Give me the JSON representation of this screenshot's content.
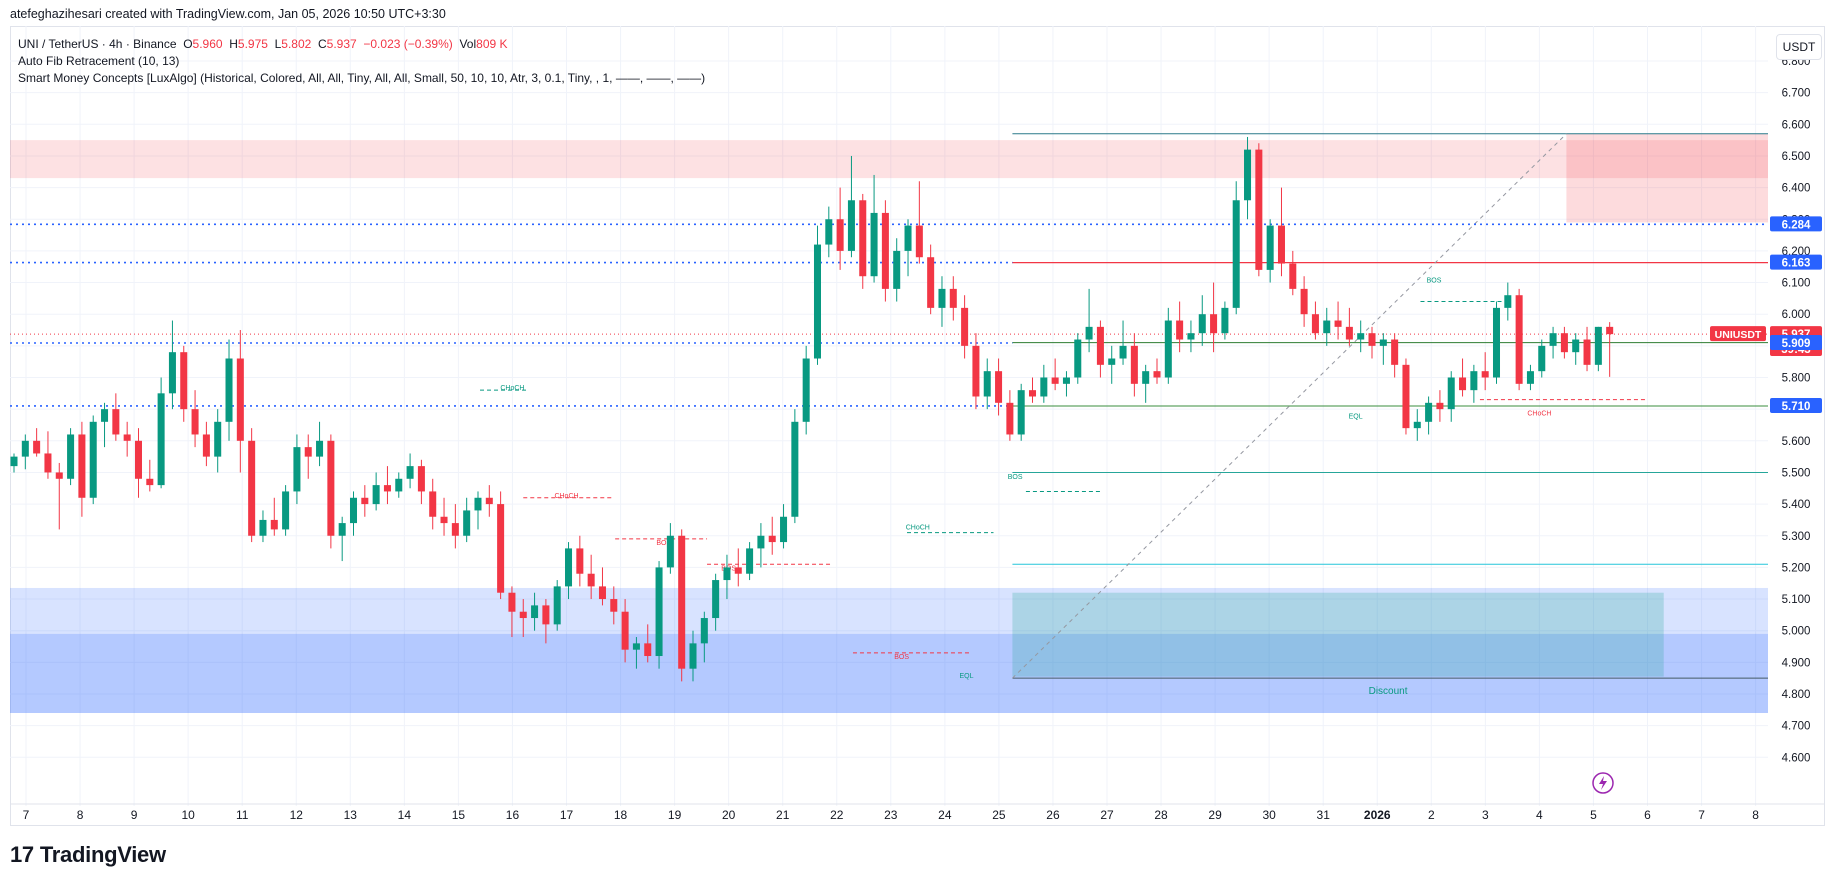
{
  "header": {
    "author_line": "atefeghazihesari created with TradingView.com, Jan 05, 2026 10:50 UTC+3:30"
  },
  "legend": {
    "symbol": "UNI / TetherUS · 4h · Binance",
    "open_label": "O",
    "open": "5.960",
    "high_label": "H",
    "high": "5.975",
    "low_label": "L",
    "low": "5.802",
    "close_label": "C",
    "close": "5.937",
    "change": "−0.023 (−0.39%)",
    "vol_label": "Vol",
    "vol": "809 K",
    "indicator1": "Auto Fib Retracement (10, 13)",
    "indicator2": "Smart Money Concepts [LuxAlgo] (Historical, Colored, All, All, Tiny, All, All, Small, 50, 10, 10, Atr, 3, 0.1, Tiny, , 1, ——, ——, ——)"
  },
  "currency_button": "USDT",
  "brand": {
    "name": "TradingView",
    "logo": "17"
  },
  "chart_data": {
    "type": "candlestick",
    "y_ticks": [
      "6.800",
      "6.700",
      "6.600",
      "6.500",
      "6.400",
      "6.300",
      "6.200",
      "6.100",
      "6.000",
      "5.900",
      "5.800",
      "5.700",
      "5.600",
      "5.500",
      "5.400",
      "5.300",
      "5.200",
      "5.100",
      "5.000",
      "4.900",
      "4.800",
      "4.700",
      "4.600"
    ],
    "ylim": [
      4.55,
      6.82
    ],
    "x_ticks": [
      "7",
      "8",
      "9",
      "10",
      "11",
      "12",
      "13",
      "14",
      "15",
      "16",
      "17",
      "18",
      "19",
      "20",
      "21",
      "22",
      "23",
      "24",
      "25",
      "26",
      "27",
      "28",
      "29",
      "30",
      "31",
      "2026",
      "2",
      "3",
      "4",
      "5",
      "6",
      "7",
      "8"
    ],
    "price_badges": [
      {
        "label": "6.284",
        "value": 6.284,
        "color": "#2962ff"
      },
      {
        "label": "6.163",
        "value": 6.163,
        "color": "#2962ff"
      },
      {
        "label": "5.937",
        "value": 5.937,
        "color": "#f23645"
      },
      {
        "label": "39:43",
        "value": 5.89,
        "color": "#f23645"
      },
      {
        "label": "5.909",
        "value": 5.909,
        "color": "#2962ff"
      },
      {
        "label": "5.710",
        "value": 5.71,
        "color": "#2962ff"
      }
    ],
    "symbol_badge": "UNIUSDT",
    "smc_labels": [
      {
        "text": "CHoCH",
        "color": "#089981",
        "x": 9.0,
        "y": 5.76
      },
      {
        "text": "CHoCH",
        "color": "#f23645",
        "x": 10.0,
        "y": 5.42
      },
      {
        "text": "BOS",
        "color": "#f23645",
        "x": 11.8,
        "y": 5.27
      },
      {
        "text": "BOS",
        "color": "#f23645",
        "x": 13.0,
        "y": 5.19
      },
      {
        "text": "CHoCH",
        "color": "#089981",
        "x": 16.5,
        "y": 5.32
      },
      {
        "text": "BOS",
        "color": "#f23645",
        "x": 16.2,
        "y": 4.91
      },
      {
        "text": "BOS",
        "color": "#089981",
        "x": 18.3,
        "y": 5.48
      },
      {
        "text": "EQL",
        "color": "#089981",
        "x": 17.4,
        "y": 4.85
      },
      {
        "text": "EQL",
        "color": "#089981",
        "x": 24.6,
        "y": 5.67
      },
      {
        "text": "BOS",
        "color": "#089981",
        "x": 26.05,
        "y": 6.1
      },
      {
        "text": "CHoCH",
        "color": "#f23645",
        "x": 28.0,
        "y": 5.68
      }
    ],
    "zone_label": "Discount",
    "candles": [
      [
        5.52,
        5.56,
        5.5,
        5.55
      ],
      [
        5.55,
        5.62,
        5.51,
        5.6
      ],
      [
        5.6,
        5.64,
        5.55,
        5.56
      ],
      [
        5.56,
        5.63,
        5.48,
        5.5
      ],
      [
        5.5,
        5.53,
        5.32,
        5.48
      ],
      [
        5.48,
        5.64,
        5.46,
        5.62
      ],
      [
        5.62,
        5.66,
        5.36,
        5.42
      ],
      [
        5.42,
        5.68,
        5.4,
        5.66
      ],
      [
        5.66,
        5.72,
        5.58,
        5.7
      ],
      [
        5.7,
        5.75,
        5.6,
        5.62
      ],
      [
        5.62,
        5.66,
        5.55,
        5.6
      ],
      [
        5.6,
        5.64,
        5.42,
        5.48
      ],
      [
        5.48,
        5.54,
        5.44,
        5.46
      ],
      [
        5.46,
        5.8,
        5.45,
        5.75
      ],
      [
        5.75,
        5.98,
        5.7,
        5.88
      ],
      [
        5.88,
        5.9,
        5.66,
        5.7
      ],
      [
        5.7,
        5.76,
        5.58,
        5.62
      ],
      [
        5.62,
        5.66,
        5.52,
        5.55
      ],
      [
        5.55,
        5.7,
        5.5,
        5.66
      ],
      [
        5.66,
        5.92,
        5.6,
        5.86
      ],
      [
        5.86,
        5.95,
        5.5,
        5.6
      ],
      [
        5.6,
        5.64,
        5.28,
        5.3
      ],
      [
        5.3,
        5.38,
        5.28,
        5.35
      ],
      [
        5.35,
        5.42,
        5.3,
        5.32
      ],
      [
        5.32,
        5.46,
        5.3,
        5.44
      ],
      [
        5.44,
        5.62,
        5.4,
        5.58
      ],
      [
        5.58,
        5.62,
        5.48,
        5.55
      ],
      [
        5.55,
        5.66,
        5.52,
        5.6
      ],
      [
        5.6,
        5.62,
        5.26,
        5.3
      ],
      [
        5.3,
        5.36,
        5.22,
        5.34
      ],
      [
        5.34,
        5.44,
        5.3,
        5.42
      ],
      [
        5.42,
        5.46,
        5.36,
        5.4
      ],
      [
        5.4,
        5.5,
        5.38,
        5.46
      ],
      [
        5.46,
        5.52,
        5.4,
        5.44
      ],
      [
        5.44,
        5.5,
        5.42,
        5.48
      ],
      [
        5.48,
        5.56,
        5.45,
        5.52
      ],
      [
        5.52,
        5.54,
        5.4,
        5.44
      ],
      [
        5.44,
        5.48,
        5.32,
        5.36
      ],
      [
        5.36,
        5.42,
        5.3,
        5.34
      ],
      [
        5.34,
        5.4,
        5.26,
        5.3
      ],
      [
        5.3,
        5.42,
        5.28,
        5.38
      ],
      [
        5.38,
        5.44,
        5.32,
        5.42
      ],
      [
        5.42,
        5.46,
        5.36,
        5.4
      ],
      [
        5.4,
        5.44,
        5.1,
        5.12
      ],
      [
        5.12,
        5.14,
        4.98,
        5.06
      ],
      [
        5.06,
        5.1,
        4.98,
        5.04
      ],
      [
        5.04,
        5.12,
        5.0,
        5.08
      ],
      [
        5.08,
        5.1,
        4.96,
        5.02
      ],
      [
        5.02,
        5.16,
        5.0,
        5.14
      ],
      [
        5.14,
        5.28,
        5.1,
        5.26
      ],
      [
        5.26,
        5.3,
        5.14,
        5.18
      ],
      [
        5.18,
        5.24,
        5.1,
        5.14
      ],
      [
        5.14,
        5.2,
        5.08,
        5.1
      ],
      [
        5.1,
        5.14,
        5.02,
        5.06
      ],
      [
        5.06,
        5.1,
        4.9,
        4.94
      ],
      [
        4.94,
        4.98,
        4.88,
        4.96
      ],
      [
        4.96,
        5.02,
        4.9,
        4.92
      ],
      [
        4.92,
        5.22,
        4.88,
        5.2
      ],
      [
        5.2,
        5.34,
        5.18,
        5.3
      ],
      [
        5.3,
        5.32,
        4.84,
        4.88
      ],
      [
        4.88,
        5.0,
        4.84,
        4.96
      ],
      [
        4.96,
        5.06,
        4.9,
        5.04
      ],
      [
        5.04,
        5.18,
        5.0,
        5.16
      ],
      [
        5.16,
        5.24,
        5.1,
        5.2
      ],
      [
        5.2,
        5.26,
        5.14,
        5.18
      ],
      [
        5.18,
        5.28,
        5.16,
        5.26
      ],
      [
        5.26,
        5.34,
        5.2,
        5.3
      ],
      [
        5.3,
        5.36,
        5.24,
        5.28
      ],
      [
        5.28,
        5.4,
        5.26,
        5.36
      ],
      [
        5.36,
        5.7,
        5.34,
        5.66
      ],
      [
        5.66,
        5.9,
        5.62,
        5.86
      ],
      [
        5.86,
        6.28,
        5.84,
        6.22
      ],
      [
        6.22,
        6.34,
        6.18,
        6.3
      ],
      [
        6.3,
        6.4,
        6.14,
        6.2
      ],
      [
        6.2,
        6.5,
        6.18,
        6.36
      ],
      [
        6.36,
        6.38,
        6.08,
        6.12
      ],
      [
        6.12,
        6.44,
        6.1,
        6.32
      ],
      [
        6.32,
        6.36,
        6.04,
        6.08
      ],
      [
        6.08,
        6.24,
        6.04,
        6.2
      ],
      [
        6.2,
        6.3,
        6.12,
        6.28
      ],
      [
        6.28,
        6.42,
        6.16,
        6.18
      ],
      [
        6.18,
        6.22,
        6.0,
        6.02
      ],
      [
        6.02,
        6.12,
        5.96,
        6.08
      ],
      [
        6.08,
        6.12,
        5.98,
        6.02
      ],
      [
        6.02,
        6.06,
        5.86,
        5.9
      ],
      [
        5.9,
        5.94,
        5.7,
        5.74
      ],
      [
        5.74,
        5.86,
        5.7,
        5.82
      ],
      [
        5.82,
        5.86,
        5.68,
        5.72
      ],
      [
        5.72,
        5.76,
        5.6,
        5.62
      ],
      [
        5.62,
        5.78,
        5.6,
        5.76
      ],
      [
        5.76,
        5.8,
        5.72,
        5.74
      ],
      [
        5.74,
        5.84,
        5.72,
        5.8
      ],
      [
        5.8,
        5.86,
        5.76,
        5.78
      ],
      [
        5.78,
        5.82,
        5.74,
        5.8
      ],
      [
        5.8,
        5.94,
        5.78,
        5.92
      ],
      [
        5.92,
        6.08,
        5.88,
        5.96
      ],
      [
        5.96,
        5.98,
        5.8,
        5.84
      ],
      [
        5.84,
        5.9,
        5.78,
        5.86
      ],
      [
        5.86,
        5.98,
        5.84,
        5.9
      ],
      [
        5.9,
        5.94,
        5.74,
        5.78
      ],
      [
        5.78,
        5.84,
        5.72,
        5.82
      ],
      [
        5.82,
        5.86,
        5.78,
        5.8
      ],
      [
        5.8,
        6.02,
        5.78,
        5.98
      ],
      [
        5.98,
        6.04,
        5.88,
        5.92
      ],
      [
        5.92,
        5.98,
        5.88,
        5.94
      ],
      [
        5.94,
        6.06,
        5.9,
        6.0
      ],
      [
        6.0,
        6.1,
        5.88,
        5.94
      ],
      [
        5.94,
        6.04,
        5.92,
        6.02
      ],
      [
        6.02,
        6.42,
        6.0,
        6.36
      ],
      [
        6.36,
        6.56,
        6.3,
        6.52
      ],
      [
        6.52,
        6.54,
        6.12,
        6.14
      ],
      [
        6.14,
        6.3,
        6.1,
        6.28
      ],
      [
        6.28,
        6.4,
        6.12,
        6.16
      ],
      [
        6.16,
        6.2,
        6.06,
        6.08
      ],
      [
        6.08,
        6.12,
        5.96,
        6.0
      ],
      [
        6.0,
        6.04,
        5.92,
        5.94
      ],
      [
        5.94,
        6.02,
        5.9,
        5.98
      ],
      [
        5.98,
        6.04,
        5.92,
        5.96
      ],
      [
        5.96,
        6.02,
        5.9,
        5.92
      ],
      [
        5.92,
        5.98,
        5.88,
        5.94
      ],
      [
        5.94,
        5.96,
        5.86,
        5.9
      ],
      [
        5.9,
        5.94,
        5.84,
        5.92
      ],
      [
        5.92,
        5.94,
        5.8,
        5.84
      ],
      [
        5.84,
        5.86,
        5.62,
        5.64
      ],
      [
        5.64,
        5.7,
        5.6,
        5.66
      ],
      [
        5.66,
        5.74,
        5.62,
        5.72
      ],
      [
        5.72,
        5.76,
        5.66,
        5.7
      ],
      [
        5.7,
        5.82,
        5.66,
        5.8
      ],
      [
        5.8,
        5.86,
        5.74,
        5.76
      ],
      [
        5.76,
        5.84,
        5.72,
        5.82
      ],
      [
        5.82,
        5.88,
        5.76,
        5.8
      ],
      [
        5.8,
        6.04,
        5.78,
        6.02
      ],
      [
        6.02,
        6.1,
        5.98,
        6.06
      ],
      [
        6.06,
        6.08,
        5.76,
        5.78
      ],
      [
        5.78,
        5.84,
        5.76,
        5.82
      ],
      [
        5.82,
        5.92,
        5.8,
        5.9
      ],
      [
        5.9,
        5.96,
        5.86,
        5.94
      ],
      [
        5.94,
        5.96,
        5.86,
        5.88
      ],
      [
        5.88,
        5.94,
        5.84,
        5.92
      ],
      [
        5.92,
        5.96,
        5.82,
        5.84
      ],
      [
        5.84,
        5.96,
        5.82,
        5.96
      ],
      [
        5.96,
        5.975,
        5.802,
        5.937
      ]
    ]
  }
}
